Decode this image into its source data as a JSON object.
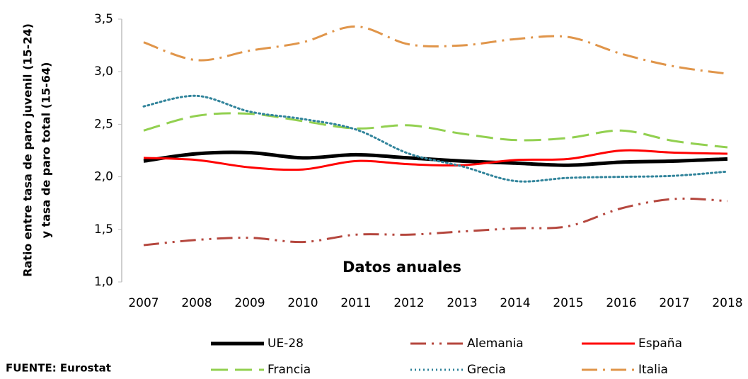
{
  "chart_data": {
    "type": "line",
    "ylabel": [
      "Ratio entre tasa de paro juvenil (15-24)",
      "y tasa de paro total (15-64)"
    ],
    "xlabel": "Datos anuales",
    "source": "FUENTE: Eurostat",
    "categories": [
      "2007",
      "2008",
      "2009",
      "2010",
      "2011",
      "2012",
      "2013",
      "2014",
      "2015",
      "2016",
      "2017",
      "2018"
    ],
    "ylim": [
      1.0,
      3.5
    ],
    "yticks": [
      {
        "value": 1.0,
        "label": "1,0"
      },
      {
        "value": 1.5,
        "label": "1,5"
      },
      {
        "value": 2.0,
        "label": "2,0"
      },
      {
        "value": 2.5,
        "label": "2,5"
      },
      {
        "value": 3.0,
        "label": "3,0"
      },
      {
        "value": 3.5,
        "label": "3,5"
      }
    ],
    "grid": false,
    "legend": "bottom",
    "series": [
      {
        "name": "UE-28",
        "color": "#000000",
        "width": 5,
        "dash": "none",
        "values": [
          2.15,
          2.22,
          2.23,
          2.18,
          2.21,
          2.18,
          2.15,
          2.13,
          2.11,
          2.14,
          2.15,
          2.17
        ]
      },
      {
        "name": "Alemania",
        "color": "#b5473e",
        "width": 3,
        "dash": "22 8 3 8 3 8",
        "values": [
          1.35,
          1.4,
          1.42,
          1.38,
          1.45,
          1.45,
          1.48,
          1.51,
          1.53,
          1.7,
          1.79,
          1.77
        ]
      },
      {
        "name": "España",
        "color": "#ff0000",
        "width": 3,
        "dash": "none",
        "values": [
          2.18,
          2.16,
          2.09,
          2.07,
          2.15,
          2.12,
          2.11,
          2.16,
          2.17,
          2.25,
          2.23,
          2.22
        ]
      },
      {
        "name": "Francia",
        "color": "#92d050",
        "width": 3,
        "dash": "24 10",
        "values": [
          2.44,
          2.58,
          2.6,
          2.53,
          2.46,
          2.49,
          2.41,
          2.35,
          2.37,
          2.44,
          2.34,
          2.28
        ]
      },
      {
        "name": "Grecia",
        "color": "#31849b",
        "width": 3,
        "dash": "2 4",
        "values": [
          2.67,
          2.77,
          2.62,
          2.55,
          2.45,
          2.22,
          2.1,
          1.96,
          1.99,
          2.0,
          2.01,
          2.05
        ]
      },
      {
        "name": "Italia",
        "color": "#e0954a",
        "width": 3,
        "dash": "22 8 3 8",
        "values": [
          3.28,
          3.11,
          3.2,
          3.28,
          3.43,
          3.26,
          3.25,
          3.31,
          3.33,
          3.17,
          3.05,
          2.98
        ]
      }
    ]
  }
}
